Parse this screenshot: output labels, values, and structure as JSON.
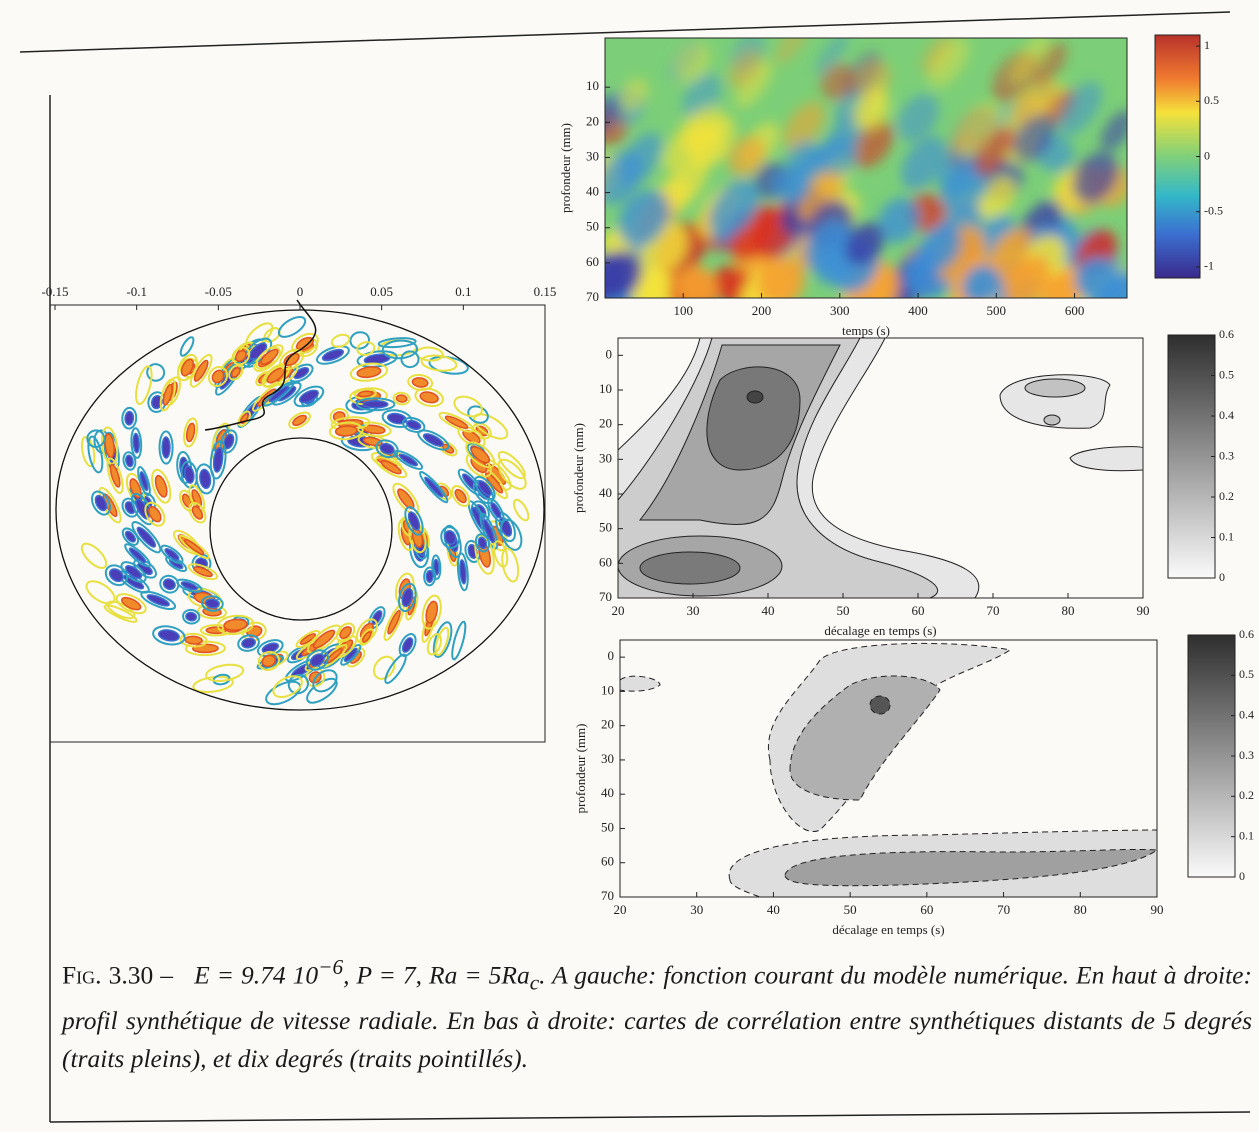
{
  "panels": {
    "left": {
      "xlim": [
        -0.15,
        0.15
      ],
      "xticks": [
        -0.15,
        -0.1,
        -0.05,
        0,
        0.05,
        0.1,
        0.15
      ]
    },
    "profile": {
      "xlim": [
        0,
        667
      ],
      "xticks": [
        100,
        200,
        300,
        400,
        500,
        600
      ],
      "ylim": [
        70,
        -4
      ],
      "yticks": [
        10,
        20,
        30,
        40,
        50,
        60,
        70
      ],
      "x_label": "temps (s)",
      "y_label": "profondeur (mm)",
      "colorbar": {
        "lim": [
          -1.1,
          1.1
        ],
        "ticks": [
          1,
          0.5,
          0,
          -0.5,
          -1
        ]
      }
    },
    "corr5": {
      "xlim": [
        20,
        90
      ],
      "xticks": [
        20,
        30,
        40,
        50,
        60,
        70,
        80,
        90
      ],
      "ylim": [
        70,
        -5
      ],
      "yticks": [
        0,
        10,
        20,
        30,
        40,
        50,
        60,
        70
      ],
      "x_label": "décalage en temps (s)",
      "y_label": "profondeur (mm)",
      "colorbar": {
        "lim": [
          0,
          0.6
        ],
        "ticks": [
          0.6,
          0.5,
          0.4,
          0.3,
          0.2,
          0.1,
          0
        ]
      }
    },
    "corr10": {
      "xlim": [
        20,
        90
      ],
      "xticks": [
        20,
        30,
        40,
        50,
        60,
        70,
        80,
        90
      ],
      "ylim": [
        70,
        -5
      ],
      "yticks": [
        0,
        10,
        20,
        30,
        40,
        50,
        60,
        70
      ],
      "x_label": "décalage en temps (s)",
      "y_label": "profondeur (mm)",
      "colorbar": {
        "lim": [
          0,
          0.6
        ],
        "ticks": [
          0.6,
          0.5,
          0.4,
          0.3,
          0.2,
          0.1,
          0
        ]
      }
    }
  },
  "caption": {
    "label": "Fig. 3.30 –",
    "math": [
      "E = 9.74 10",
      "−6",
      ", P = 7, Ra = 5Ra",
      "c",
      "."
    ],
    "text": "A gauche: fonction courant du modèle numérique. En haut à droite: profil synthétique de vitesse radiale. En bas à droite: cartes de corrélation entre synthétiques distants de 5 degrés (traits pleins), et dix degrés (traits pointillés)."
  }
}
